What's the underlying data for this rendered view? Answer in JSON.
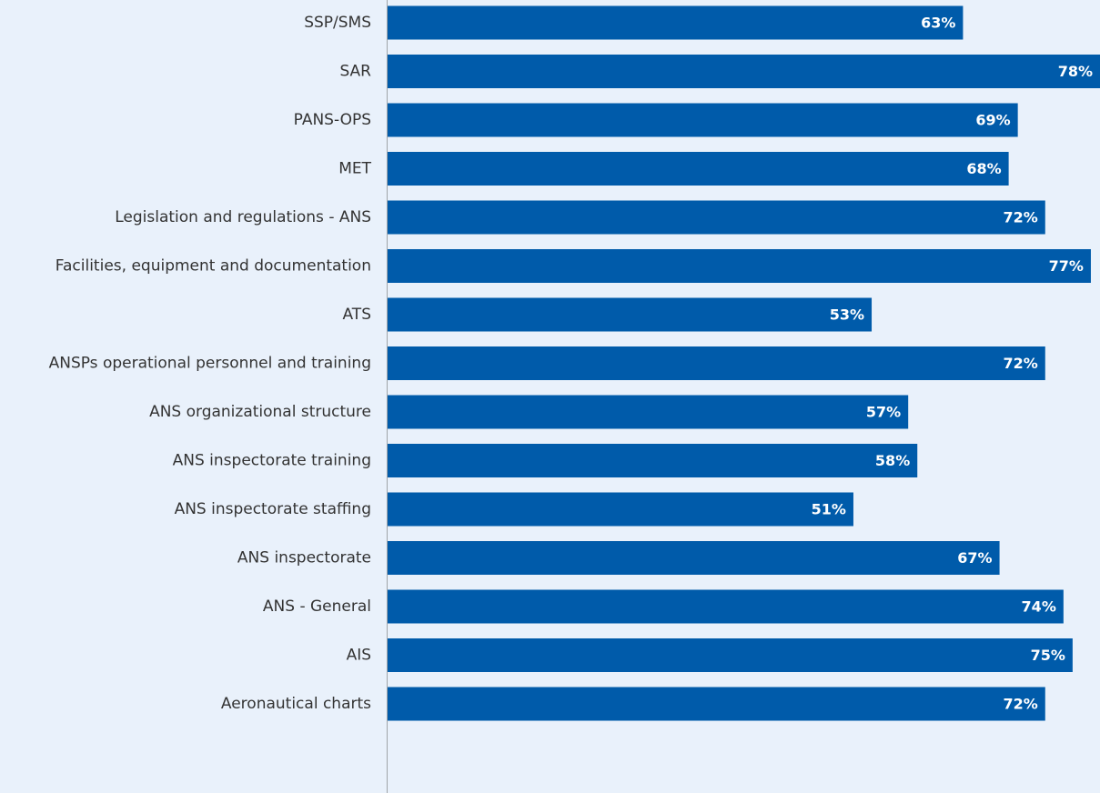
{
  "chart_data": {
    "type": "bar",
    "orientation": "horizontal",
    "color": "#005baa",
    "categories": [
      "SSP/SMS",
      "SAR",
      "PANS-OPS",
      "MET",
      "Legislation and regulations - ANS",
      "Facilities, equipment and documentation",
      "ATS",
      "ANSPs operational personnel and training",
      "ANS organizational structure",
      "ANS inspectorate training",
      "ANS inspectorate staffing",
      "ANS inspectorate",
      "ANS - General",
      "AIS",
      "Aeronautical charts"
    ],
    "values": [
      63,
      78,
      69,
      68,
      72,
      77,
      53,
      72,
      57,
      58,
      51,
      67,
      74,
      75,
      72
    ],
    "value_labels": [
      "63%",
      "78%",
      "69%",
      "68%",
      "72%",
      "77%",
      "53%",
      "72%",
      "57%",
      "58%",
      "51%",
      "67%",
      "74%",
      "75%",
      "72%"
    ]
  }
}
